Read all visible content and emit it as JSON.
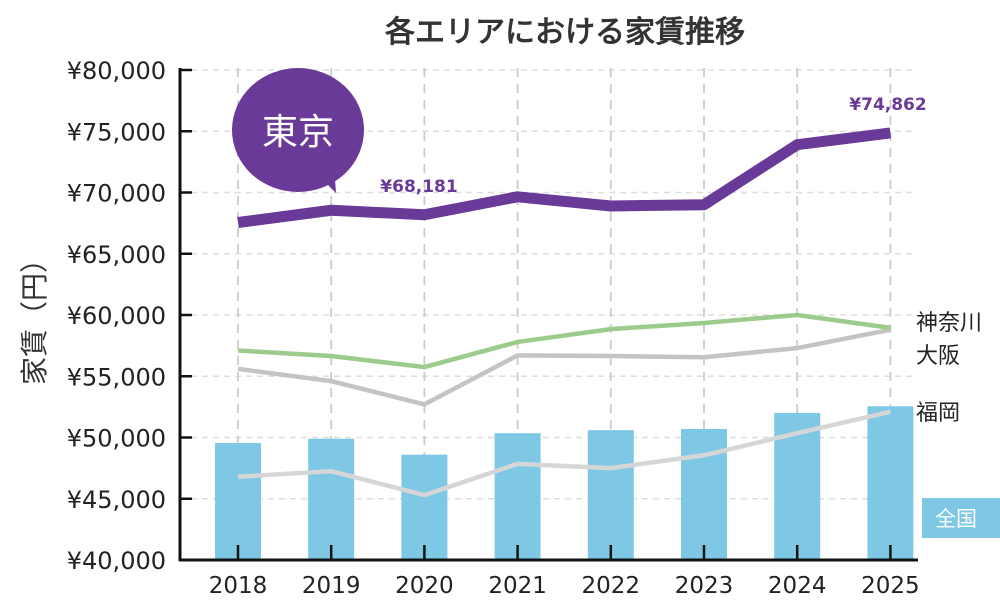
{
  "chart_data": {
    "type": "line+bar",
    "title": "各エリアにおける家賃推移",
    "ylabel": "家賃（円）",
    "xlabel": "",
    "ylim": [
      40000,
      80000
    ],
    "yticks": [
      40000,
      45000,
      50000,
      55000,
      60000,
      65000,
      70000,
      75000,
      80000
    ],
    "ytick_labels": [
      "¥40,000",
      "¥45,000",
      "¥50,000",
      "¥55,000",
      "¥60,000",
      "¥65,000",
      "¥70,000",
      "¥75,000",
      "¥80,000"
    ],
    "categories": [
      "2018",
      "2019",
      "2020",
      "2021",
      "2022",
      "2023",
      "2024",
      "2025"
    ],
    "grid": true,
    "series": [
      {
        "name": "全国",
        "kind": "bar",
        "color": "#7ec8e6",
        "values": [
          49550,
          49900,
          48600,
          50350,
          50600,
          50700,
          52000,
          52550
        ]
      },
      {
        "name": "福岡",
        "kind": "line",
        "color": "#d6d6d6",
        "values": [
          46800,
          47250,
          45300,
          47850,
          47500,
          48550,
          50350,
          52100
        ]
      },
      {
        "name": "大阪",
        "kind": "line",
        "color": "#c4c4c4",
        "values": [
          55600,
          54600,
          52700,
          56700,
          56650,
          56550,
          57300,
          58800
        ]
      },
      {
        "name": "神奈川",
        "kind": "line",
        "color": "#9ccc8c",
        "values": [
          57100,
          56650,
          55750,
          57800,
          58850,
          59350,
          60000,
          58950
        ]
      },
      {
        "name": "東京",
        "kind": "line",
        "color": "#6a3a98",
        "values": [
          67550,
          68550,
          68181,
          69650,
          68900,
          69000,
          73900,
          74862
        ]
      }
    ],
    "annotations": [
      {
        "text": "¥68,181",
        "category": "2020",
        "series": "東京"
      },
      {
        "text": "¥74,862",
        "category": "2025",
        "series": "東京"
      }
    ],
    "callout": "東京"
  }
}
